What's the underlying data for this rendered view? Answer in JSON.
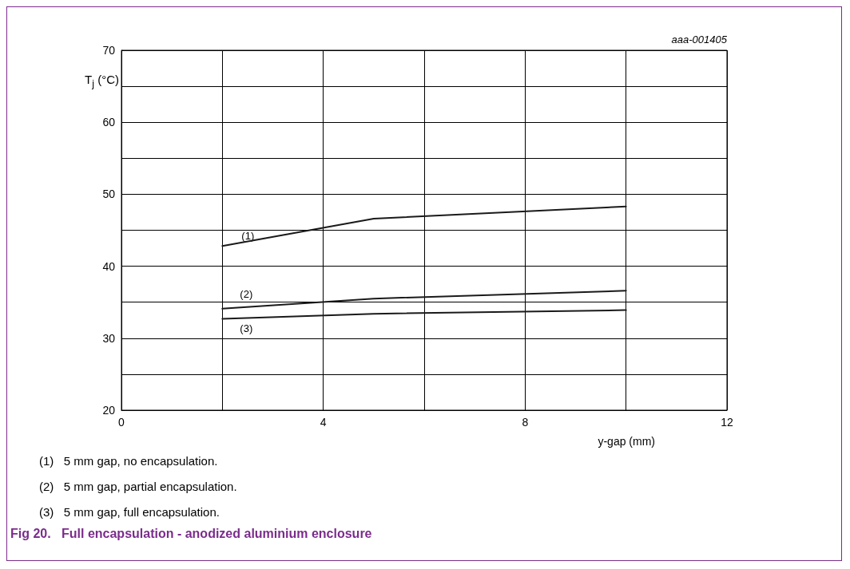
{
  "chart_data": {
    "type": "line",
    "title": "Fig 20.   Full encapsulation - anodized aluminium enclosure",
    "xlabel": "y-gap (mm)",
    "ylabel": "T$_{j}$ (°C)",
    "annotations": [
      "aaa-001405",
      "(1)   5 mm gap, no encapsulation.",
      "(2)   5 mm gap, partial encapsulation.",
      "(3)   5 mm gap, full encapsulation."
    ],
    "x": [
      2,
      5,
      10
    ],
    "series": [
      {
        "name": "(1)",
        "color": "#1a1a1a",
        "values": [
          42.8,
          46.6,
          48.3
        ]
      },
      {
        "name": "(2)",
        "color": "#1a1a1a",
        "values": [
          34.1,
          35.5,
          36.6
        ]
      },
      {
        "name": "(3)",
        "color": "#1a1a1a",
        "values": [
          32.7,
          33.4,
          33.9
        ]
      }
    ],
    "xlim": [
      0,
      12
    ],
    "xticks": [
      0,
      {
        "value": 2,
        "label": null
      },
      4,
      {
        "value": 6,
        "label": null
      },
      8,
      {
        "value": 10,
        "label": null
      },
      12
    ],
    "ylim": [
      20,
      70
    ],
    "yticks": [
      20,
      {
        "value": 25,
        "label": null
      },
      30,
      {
        "value": 35,
        "label": null
      },
      40,
      {
        "value": 45,
        "label": null
      },
      50,
      {
        "value": 55,
        "label": null
      },
      60,
      {
        "value": 65,
        "label": null
      },
      70
    ],
    "grid": true,
    "legend": false,
    "marker": "none",
    "line_style": "solid"
  }
}
